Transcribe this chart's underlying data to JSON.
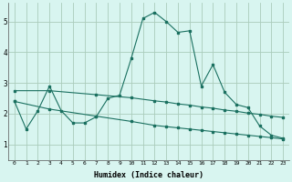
{
  "xlabel": "Humidex (Indice chaleur)",
  "bg_color": "#d8f5f0",
  "grid_color": "#aaccbb",
  "line_color": "#1a7060",
  "xlim": [
    -0.5,
    23.5
  ],
  "ylim": [
    0.5,
    5.6
  ],
  "yticks": [
    1,
    2,
    3,
    4,
    5
  ],
  "xticks": [
    0,
    1,
    2,
    3,
    4,
    5,
    6,
    7,
    8,
    9,
    10,
    11,
    12,
    13,
    14,
    15,
    16,
    17,
    18,
    19,
    20,
    21,
    22,
    23
  ],
  "series1_x": [
    0,
    1,
    2,
    3,
    4,
    5,
    6,
    7,
    8,
    9,
    10,
    11,
    12,
    13,
    14,
    15,
    16,
    17,
    18,
    19,
    20,
    21,
    22,
    23
  ],
  "series1_y": [
    2.4,
    1.5,
    2.1,
    2.9,
    2.1,
    1.7,
    1.7,
    1.9,
    2.5,
    2.6,
    3.8,
    5.1,
    5.3,
    5.0,
    4.65,
    4.7,
    2.9,
    3.6,
    2.7,
    2.3,
    2.2,
    1.6,
    1.3,
    1.2
  ],
  "series2_x": [
    0,
    3,
    7,
    10,
    12,
    13,
    14,
    15,
    16,
    17,
    18,
    19,
    20,
    21,
    22,
    23
  ],
  "series2_y": [
    2.75,
    2.75,
    2.62,
    2.52,
    2.42,
    2.38,
    2.32,
    2.28,
    2.22,
    2.18,
    2.12,
    2.08,
    2.02,
    1.98,
    1.92,
    1.88
  ],
  "series3_x": [
    0,
    3,
    7,
    10,
    12,
    13,
    14,
    15,
    16,
    17,
    18,
    19,
    20,
    21,
    22,
    23
  ],
  "series3_y": [
    2.4,
    2.15,
    1.92,
    1.75,
    1.62,
    1.58,
    1.54,
    1.5,
    1.46,
    1.42,
    1.38,
    1.34,
    1.3,
    1.26,
    1.22,
    1.18
  ]
}
